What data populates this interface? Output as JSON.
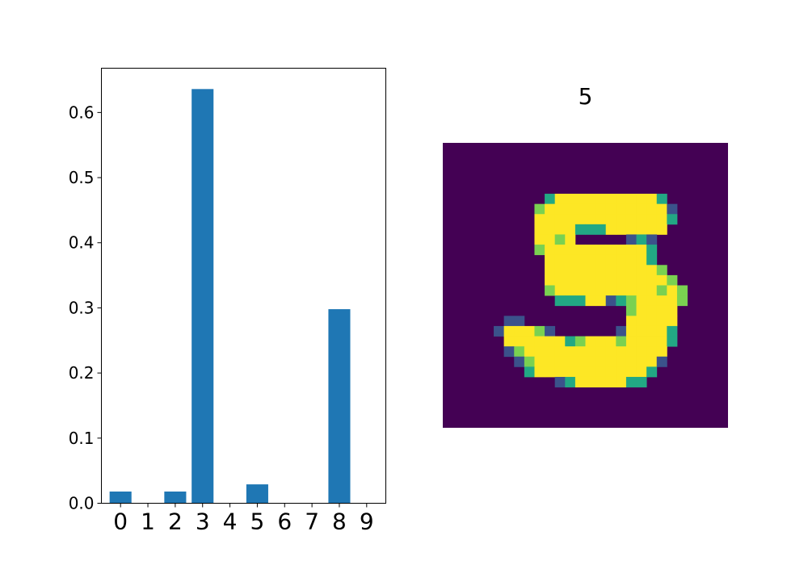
{
  "chart_data": [
    {
      "type": "bar",
      "categories": [
        "0",
        "1",
        "2",
        "3",
        "4",
        "5",
        "6",
        "7",
        "8",
        "9"
      ],
      "values": [
        0.018,
        0.0,
        0.018,
        0.636,
        0.0,
        0.029,
        0.0,
        0.0,
        0.298,
        0.0
      ],
      "title": "",
      "xlabel": "",
      "ylabel": "",
      "ylim": [
        0,
        0.668
      ],
      "yticks": [
        "0.0",
        "0.1",
        "0.2",
        "0.3",
        "0.4",
        "0.5",
        "0.6"
      ],
      "ytick_values": [
        0.0,
        0.1,
        0.2,
        0.3,
        0.4,
        0.5,
        0.6
      ],
      "bar_color": "#1f77b4",
      "grid": false,
      "legend": "none"
    },
    {
      "type": "heatmap",
      "title": "5",
      "colormap": "viridis",
      "background_color": "#440154",
      "foreground_color": "#fde725",
      "grid": false,
      "axes": "hidden"
    }
  ]
}
